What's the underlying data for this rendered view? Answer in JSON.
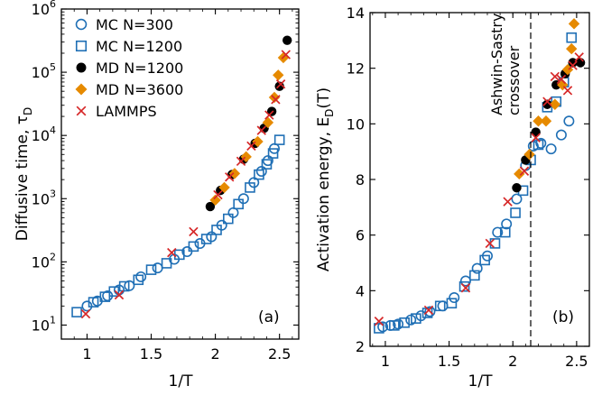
{
  "chart_data": [
    {
      "type": "scatter",
      "panel_label": "(a)",
      "xlabel": "1/T",
      "ylabel": "Diffusive time, τ_D",
      "ylabel_main": "Diffusive time, τ",
      "ylabel_sub": "D",
      "xlim": [
        0.8,
        2.65
      ],
      "ylim": [
        6,
        1000000
      ],
      "yscale": "log",
      "xticks": [
        1,
        1.5,
        2,
        2.5
      ],
      "xtick_labels": [
        "1",
        "1.5",
        "2",
        "2.5"
      ],
      "yticks": [
        10,
        100,
        1000,
        10000,
        100000,
        1000000
      ],
      "ytick_bases": [
        "10",
        "10",
        "10",
        "10",
        "10",
        "10"
      ],
      "ytick_exps": [
        "1",
        "2",
        "3",
        "4",
        "5",
        "6"
      ],
      "legend_position": "top-left",
      "series": [
        {
          "name": "MC N=300",
          "marker": "circle",
          "color": "#1f6fb5",
          "points": [
            [
              1.0,
              20
            ],
            [
              1.08,
              24
            ],
            [
              1.16,
              29
            ],
            [
              1.25,
              36
            ],
            [
              1.33,
              42
            ],
            [
              1.42,
              58
            ],
            [
              1.55,
              80
            ],
            [
              1.68,
              110
            ],
            [
              1.78,
              145
            ],
            [
              1.88,
              195
            ],
            [
              1.97,
              250
            ],
            [
              2.05,
              380
            ],
            [
              2.14,
              600
            ],
            [
              2.22,
              1000
            ],
            [
              2.3,
              1800
            ],
            [
              2.36,
              2700
            ],
            [
              2.41,
              4000
            ],
            [
              2.46,
              6200
            ]
          ]
        },
        {
          "name": "MC N=1200",
          "marker": "square",
          "color": "#1f6fb5",
          "points": [
            [
              0.92,
              16
            ],
            [
              1.05,
              23
            ],
            [
              1.14,
              28
            ],
            [
              1.21,
              34
            ],
            [
              1.29,
              41
            ],
            [
              1.4,
              52
            ],
            [
              1.5,
              75
            ],
            [
              1.62,
              95
            ],
            [
              1.72,
              130
            ],
            [
              1.83,
              175
            ],
            [
              1.93,
              230
            ],
            [
              2.01,
              320
            ],
            [
              2.1,
              480
            ],
            [
              2.18,
              820
            ],
            [
              2.27,
              1500
            ],
            [
              2.34,
              2400
            ],
            [
              2.4,
              3500
            ],
            [
              2.45,
              5200
            ],
            [
              2.5,
              8500
            ]
          ]
        },
        {
          "name": "MD N=1200",
          "marker": "filled-circle",
          "color": "#000000",
          "points": [
            [
              1.96,
              750
            ],
            [
              2.04,
              1350
            ],
            [
              2.13,
              2400
            ],
            [
              2.22,
              4200
            ],
            [
              2.31,
              7500
            ],
            [
              2.38,
              13000
            ],
            [
              2.44,
              24000
            ],
            [
              2.5,
              60000
            ],
            [
              2.56,
              320000
            ]
          ]
        },
        {
          "name": "MD N=3600",
          "marker": "diamond",
          "color": "#e68a00",
          "points": [
            [
              2.0,
              950
            ],
            [
              2.07,
              1500
            ],
            [
              2.15,
              2500
            ],
            [
              2.24,
              4600
            ],
            [
              2.33,
              8000
            ],
            [
              2.41,
              16000
            ],
            [
              2.46,
              40000
            ],
            [
              2.49,
              90000
            ],
            [
              2.53,
              170000
            ]
          ]
        },
        {
          "name": "LAMMPS",
          "marker": "x",
          "color": "#d62728",
          "points": [
            [
              0.99,
              15
            ],
            [
              1.25,
              30
            ],
            [
              1.66,
              140
            ],
            [
              1.83,
              300
            ],
            [
              2.02,
              1150
            ],
            [
              2.11,
              2200
            ],
            [
              2.2,
              3900
            ],
            [
              2.28,
              6800
            ],
            [
              2.36,
              12000
            ],
            [
              2.42,
              21000
            ],
            [
              2.47,
              37000
            ],
            [
              2.51,
              65000
            ],
            [
              2.55,
              190000
            ]
          ]
        }
      ]
    },
    {
      "type": "scatter",
      "panel_label": "(b)",
      "xlabel": "1/T",
      "ylabel": "Activation energy, E_D(T)",
      "ylabel_main": "Activation energy, E",
      "ylabel_sub": "D",
      "ylabel_tail": "(T)",
      "xlim": [
        0.88,
        2.6
      ],
      "ylim": [
        2,
        14
      ],
      "xticks": [
        1,
        1.5,
        2,
        2.5
      ],
      "xtick_labels": [
        "1",
        "1.5",
        "2",
        "2.5"
      ],
      "yticks": [
        2,
        4,
        6,
        8,
        10,
        12,
        14
      ],
      "ytick_labels": [
        "2",
        "4",
        "6",
        "8",
        "10",
        "12",
        "14"
      ],
      "annotation": {
        "lines": [
          "Ashwin-Sastry",
          "crossover"
        ],
        "x": 2.14
      },
      "series": [
        {
          "name": "MC N=300",
          "marker": "circle",
          "color": "#1f6fb5",
          "points": [
            [
              0.98,
              2.7
            ],
            [
              1.04,
              2.75
            ],
            [
              1.1,
              2.8
            ],
            [
              1.2,
              2.95
            ],
            [
              1.28,
              3.1
            ],
            [
              1.35,
              3.25
            ],
            [
              1.45,
              3.45
            ],
            [
              1.54,
              3.75
            ],
            [
              1.63,
              4.35
            ],
            [
              1.72,
              4.8
            ],
            [
              1.8,
              5.25
            ],
            [
              1.88,
              6.1
            ],
            [
              1.95,
              6.4
            ],
            [
              2.03,
              7.3
            ],
            [
              2.1,
              8.5
            ],
            [
              2.16,
              9.2
            ],
            [
              2.22,
              9.3
            ],
            [
              2.3,
              9.1
            ],
            [
              2.38,
              9.6
            ],
            [
              2.44,
              10.1
            ]
          ]
        },
        {
          "name": "MC N=1200",
          "marker": "square",
          "color": "#1f6fb5",
          "points": [
            [
              0.95,
              2.65
            ],
            [
              1.07,
              2.75
            ],
            [
              1.15,
              2.85
            ],
            [
              1.24,
              3.0
            ],
            [
              1.33,
              3.2
            ],
            [
              1.43,
              3.45
            ],
            [
              1.52,
              3.55
            ],
            [
              1.62,
              4.15
            ],
            [
              1.7,
              4.55
            ],
            [
              1.78,
              5.1
            ],
            [
              1.86,
              5.7
            ],
            [
              1.94,
              6.1
            ],
            [
              2.02,
              6.8
            ],
            [
              2.08,
              7.6
            ],
            [
              2.14,
              8.7
            ],
            [
              2.2,
              9.25
            ],
            [
              2.27,
              10.6
            ],
            [
              2.34,
              10.8
            ],
            [
              2.4,
              11.5
            ],
            [
              2.46,
              13.1
            ]
          ]
        },
        {
          "name": "MD N=1200",
          "marker": "filled-circle",
          "color": "#000000",
          "points": [
            [
              2.03,
              7.7
            ],
            [
              2.1,
              8.7
            ],
            [
              2.18,
              9.7
            ],
            [
              2.27,
              10.7
            ],
            [
              2.34,
              11.4
            ],
            [
              2.41,
              11.8
            ],
            [
              2.47,
              12.2
            ],
            [
              2.53,
              12.2
            ]
          ]
        },
        {
          "name": "MD N=3600",
          "marker": "diamond",
          "color": "#e68a00",
          "points": [
            [
              2.05,
              8.2
            ],
            [
              2.13,
              8.9
            ],
            [
              2.2,
              10.1
            ],
            [
              2.26,
              10.1
            ],
            [
              2.33,
              10.7
            ],
            [
              2.39,
              11.4
            ],
            [
              2.43,
              11.95
            ],
            [
              2.46,
              12.7
            ],
            [
              2.48,
              13.6
            ]
          ]
        },
        {
          "name": "LAMMPS",
          "marker": "x",
          "color": "#d62728",
          "points": [
            [
              0.95,
              2.9
            ],
            [
              1.34,
              3.3
            ],
            [
              1.63,
              4.1
            ],
            [
              1.82,
              5.7
            ],
            [
              1.96,
              7.2
            ],
            [
              2.09,
              8.3
            ],
            [
              2.18,
              9.5
            ],
            [
              2.27,
              10.8
            ],
            [
              2.33,
              11.7
            ],
            [
              2.38,
              11.6
            ],
            [
              2.43,
              11.2
            ],
            [
              2.47,
              12.1
            ],
            [
              2.52,
              12.4
            ]
          ]
        }
      ]
    }
  ]
}
